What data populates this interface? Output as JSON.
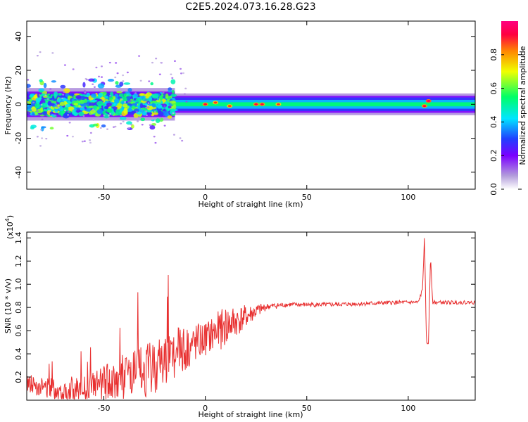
{
  "title": "C2E5.2024.073.16.28.G23",
  "chart_data": [
    {
      "type": "heatmap",
      "xlabel": "Height of straight line (km)",
      "ylabel": "Frequency (Hz)",
      "xlim": [
        -88,
        133
      ],
      "ylim": [
        -50,
        49
      ],
      "xticks": [
        -50,
        0,
        50,
        100
      ],
      "yticks": [
        -40,
        -20,
        0,
        20,
        40
      ],
      "colorbar": {
        "label": "Normalized spectral amplitude",
        "range": [
          0,
          1
        ],
        "ticks": [
          "0.0",
          "0.2",
          "0.4",
          "0.6",
          "0.8"
        ],
        "colormap": [
          "#ffffff",
          "#b39ddb",
          "#7b00ff",
          "#2040ff",
          "#00e5ff",
          "#00ff66",
          "#f0ff00",
          "#ff8800",
          "#ff0040",
          "#ff0080"
        ]
      },
      "bands": [
        {
          "x": [
            -88,
            -15
          ],
          "halfwidth": 6,
          "peak": 0.5
        },
        {
          "x": [
            -15,
            133
          ],
          "halfwidth": 4,
          "peak": 0.55
        }
      ],
      "hotspots": [
        {
          "x": 0,
          "y": 0,
          "value": 0.9
        },
        {
          "x": 5,
          "y": 1,
          "value": 0.85
        },
        {
          "x": 12,
          "y": -1,
          "value": 0.85
        },
        {
          "x": 25,
          "y": 0,
          "value": 0.9
        },
        {
          "x": 28,
          "y": 0,
          "value": 0.9
        },
        {
          "x": 36,
          "y": 0,
          "value": 0.85
        },
        {
          "x": 108,
          "y": -1,
          "value": 0.9
        },
        {
          "x": 110,
          "y": 2,
          "value": 0.95
        }
      ]
    },
    {
      "type": "line",
      "xlabel": "Height of straight line (km)",
      "ylabel": "SNR (10 * v/v)",
      "yscale_label": "(x10",
      "yscale_exponent": "4",
      "yscale_suffix": ")",
      "xlim": [
        -88,
        133
      ],
      "ylim": [
        0,
        1.45
      ],
      "xticks": [
        -50,
        0,
        50,
        100
      ],
      "yticks": [
        "0.2",
        "0.4",
        "0.6",
        "0.8",
        "1.0",
        "1.2",
        "1.4"
      ],
      "series": [
        {
          "color": "#e83030",
          "trend": {
            "x": [
              -88,
              -80,
              -70,
              -60,
              -50,
              -40,
              -30,
              -20,
              -10,
              0,
              10,
              20,
              30,
              40,
              60,
              80,
              95,
              105,
              107,
              108,
              109,
              110,
              111,
              112,
              113,
              120,
              133
            ],
            "y": [
              0.13,
              0.1,
              0.06,
              0.08,
              0.12,
              0.16,
              0.2,
              0.3,
              0.4,
              0.5,
              0.6,
              0.7,
              0.8,
              0.82,
              0.82,
              0.83,
              0.84,
              0.84,
              0.95,
              1.4,
              0.48,
              0.5,
              1.25,
              0.85,
              0.84,
              0.84,
              0.84
            ]
          },
          "noise": {
            "x": [
              -88,
              -60,
              -40,
              -20,
              0,
              10,
              20,
              30,
              40,
              133
            ],
            "amplitude": [
              0.08,
              0.1,
              0.2,
              0.25,
              0.15,
              0.18,
              0.1,
              0.03,
              0.02,
              0.015
            ]
          }
        }
      ]
    }
  ]
}
